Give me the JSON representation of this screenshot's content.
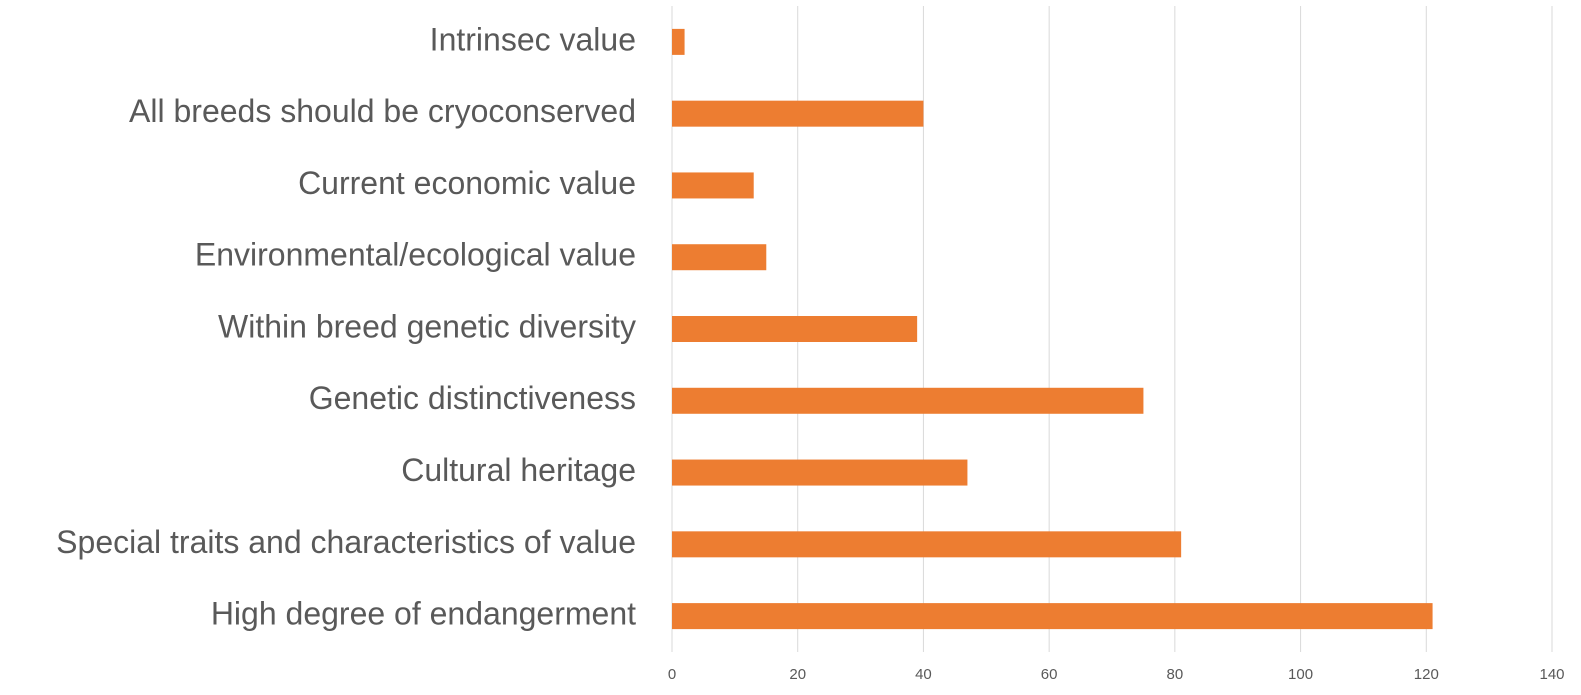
{
  "chart_data": {
    "type": "barh",
    "categories": [
      "Intrinsec value",
      "All breeds should be cryoconserved",
      "Current economic value",
      "Environmental/ecological value",
      "Within breed genetic diversity",
      "Genetic distinctiveness",
      "Cultural heritage",
      "Special traits and characteristics of value",
      "High degree of endangerment"
    ],
    "values": [
      2,
      40,
      13,
      15,
      39,
      75,
      47,
      81,
      121
    ],
    "color": "#ed7d31",
    "xlim": [
      0,
      140
    ],
    "xticks": [
      0,
      20,
      40,
      60,
      80,
      100,
      120,
      140
    ],
    "grid": true
  }
}
